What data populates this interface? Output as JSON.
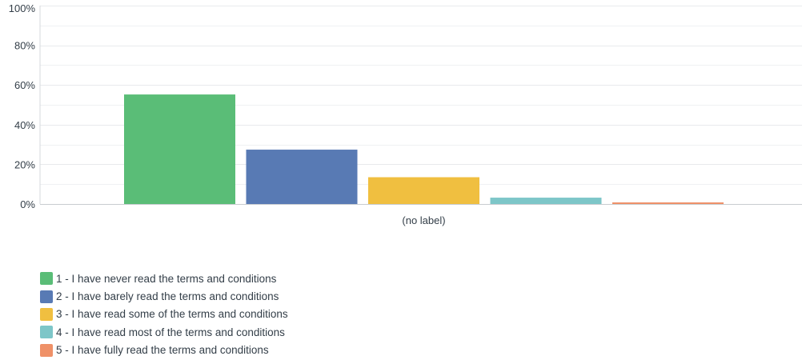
{
  "chart_data": {
    "type": "bar",
    "categories": [
      "(no label)"
    ],
    "series": [
      {
        "name": "1 - I have never read the terms and conditions",
        "values": [
          55.2
        ],
        "color": "#5abd77"
      },
      {
        "name": "2 - I have barely read the terms and conditions",
        "values": [
          27.4
        ],
        "color": "#587ab4"
      },
      {
        "name": "3 - I have read some of the terms and conditions",
        "values": [
          13.5
        ],
        "color": "#f0bf40"
      },
      {
        "name": "4 - I have read most of the terms and conditions",
        "values": [
          3.2
        ],
        "color": "#7dc6c8"
      },
      {
        "name": "5 - I have fully read the terms and conditions",
        "values": [
          0.8
        ],
        "color": "#ef9168"
      }
    ],
    "ylim": [
      0,
      100
    ],
    "yticks": [
      0,
      20,
      40,
      60,
      80,
      100
    ],
    "ytick_labels": [
      "0%",
      "20%",
      "40%",
      "60%",
      "80%",
      "100%"
    ],
    "xlabel": "",
    "ylabel": "",
    "grid": true,
    "legend_position": "bottom-left"
  }
}
